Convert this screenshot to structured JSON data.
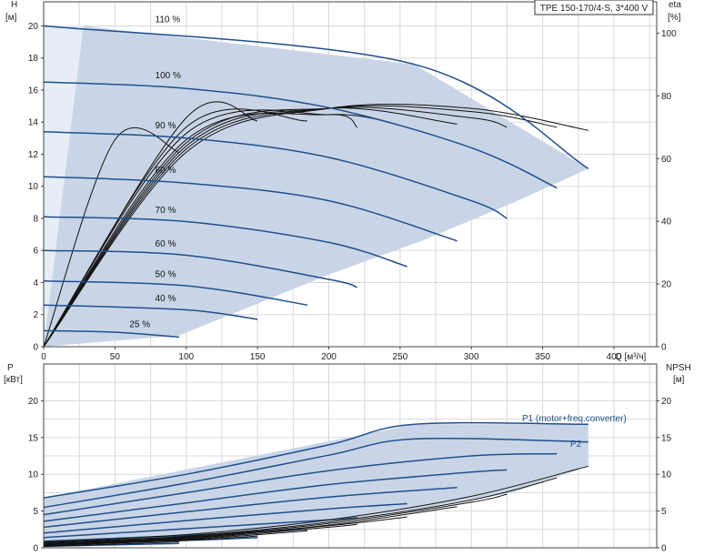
{
  "product_label": "TPE 150-170/4-S, 3*400 V",
  "chart_data": [
    {
      "type": "line",
      "panel": "head-efficiency",
      "xaxis": {
        "unit_label": "Q [м³/ч]",
        "range": [
          0,
          430
        ],
        "ticks": [
          "0",
          "50",
          "100",
          "150",
          "200",
          "250",
          "300",
          "350",
          "400"
        ]
      },
      "yaxis_left": {
        "name": "H",
        "unit": "[м]",
        "range": [
          0,
          21.5
        ],
        "ticks": [
          "0",
          "2",
          "4",
          "6",
          "8",
          "10",
          "12",
          "14",
          "16",
          "18",
          "20"
        ]
      },
      "yaxis_right": {
        "name": "eta",
        "unit": "[%]",
        "range": [
          0,
          110
        ],
        "ticks": [
          "0",
          "20",
          "40",
          "60",
          "80",
          "100"
        ]
      },
      "grid": true,
      "envelope": {
        "x": [
          0,
          28,
          260,
          382,
          330,
          265,
          200,
          95,
          0
        ],
        "y": [
          20,
          20,
          17.6,
          11.1,
          9.0,
          6.6,
          4.5,
          0.7,
          0
        ]
      },
      "head_curves": [
        {
          "label": "110 %",
          "x": [
            0,
            260,
            382
          ],
          "y": [
            20,
            17.6,
            11.1
          ]
        },
        {
          "label": "100 %",
          "x": [
            0,
            100,
            200,
            300,
            360
          ],
          "y": [
            16.5,
            16.1,
            14.9,
            12.4,
            9.9
          ]
        },
        {
          "label": "90 %",
          "x": [
            0,
            100,
            200,
            300,
            325
          ],
          "y": [
            13.4,
            13.0,
            11.8,
            9.1,
            8.0
          ]
        },
        {
          "label": "80 %",
          "x": [
            0,
            100,
            200,
            290
          ],
          "y": [
            10.6,
            10.2,
            9.1,
            6.6
          ]
        },
        {
          "label": "70 %",
          "x": [
            0,
            100,
            200,
            255
          ],
          "y": [
            8.1,
            7.8,
            6.5,
            5.0
          ]
        },
        {
          "label": "60 %",
          "x": [
            0,
            100,
            200,
            220
          ],
          "y": [
            6.0,
            5.7,
            4.2,
            3.7
          ]
        },
        {
          "label": "50 %",
          "x": [
            0,
            100,
            185
          ],
          "y": [
            4.1,
            3.8,
            2.6
          ]
        },
        {
          "label": "40 %",
          "x": [
            0,
            100,
            150
          ],
          "y": [
            2.6,
            2.3,
            1.7
          ]
        },
        {
          "label": "25 %",
          "x": [
            0,
            50,
            95
          ],
          "y": [
            1.0,
            0.9,
            0.6
          ]
        }
      ],
      "efficiency_curves": [
        {
          "name": "eta 110 %",
          "x": [
            0,
            100,
            200,
            300,
            382
          ],
          "y": [
            0,
            62,
            76,
            76,
            69
          ]
        },
        {
          "name": "eta 100 %",
          "x": [
            0,
            100,
            200,
            300,
            360
          ],
          "y": [
            0,
            63,
            76,
            75,
            70
          ]
        },
        {
          "name": "eta 90 %",
          "x": [
            0,
            100,
            200,
            300,
            325
          ],
          "y": [
            0,
            64,
            76,
            73,
            70
          ]
        },
        {
          "name": "eta 80 %",
          "x": [
            0,
            100,
            200,
            290
          ],
          "y": [
            0,
            65,
            76,
            71
          ]
        },
        {
          "name": "eta 70 %",
          "x": [
            0,
            100,
            200,
            255
          ],
          "y": [
            0,
            66,
            74,
            70
          ]
        },
        {
          "name": "eta 60 %",
          "x": [
            0,
            100,
            200,
            220
          ],
          "y": [
            0,
            68,
            74,
            70
          ]
        },
        {
          "name": "eta 50 %",
          "x": [
            0,
            100,
            185
          ],
          "y": [
            0,
            70,
            72
          ]
        },
        {
          "name": "eta 40 %",
          "x": [
            0,
            100,
            150
          ],
          "y": [
            0,
            73,
            72
          ]
        },
        {
          "name": "eta 25 %",
          "x": [
            0,
            50,
            95
          ],
          "y": [
            0,
            66,
            62
          ]
        }
      ]
    },
    {
      "type": "line",
      "panel": "power-npsh",
      "xaxis": {
        "range": [
          0,
          430
        ]
      },
      "yaxis_left": {
        "name": "P",
        "unit": "[кВт]",
        "range": [
          0,
          25
        ],
        "ticks": [
          "0",
          "5",
          "10",
          "15",
          "20"
        ]
      },
      "yaxis_right": {
        "name": "NPSH",
        "unit": "[м]",
        "range": [
          0,
          25
        ],
        "ticks": [
          "0",
          "5",
          "10",
          "15",
          "20"
        ]
      },
      "grid": true,
      "envelope": {
        "x": [
          0,
          260,
          382,
          382,
          330,
          260,
          200,
          95,
          0
        ],
        "y": [
          6.8,
          16.8,
          16.8,
          11.1,
          7.6,
          5.2,
          3.5,
          1.2,
          0
        ]
      },
      "series": [
        {
          "name": "P1 (motor+freq.converter)",
          "x": [
            0,
            100,
            200,
            260,
            382
          ],
          "y": [
            6.8,
            10.0,
            14.0,
            16.8,
            16.8
          ]
        },
        {
          "name": "P2",
          "x": [
            0,
            100,
            200,
            260,
            382
          ],
          "y": [
            5.5,
            8.8,
            12.6,
            14.8,
            14.4
          ]
        },
        {
          "name": "",
          "x": [
            0,
            100,
            200,
            300,
            360
          ],
          "y": [
            4.5,
            7.5,
            10.5,
            12.5,
            12.8
          ]
        },
        {
          "name": "",
          "x": [
            0,
            100,
            200,
            300,
            325
          ],
          "y": [
            3.6,
            6.1,
            8.6,
            10.3,
            10.6
          ]
        },
        {
          "name": "",
          "x": [
            0,
            100,
            200,
            290
          ],
          "y": [
            2.8,
            4.9,
            6.9,
            8.2
          ]
        },
        {
          "name": "",
          "x": [
            0,
            100,
            200,
            255
          ],
          "y": [
            2.0,
            3.7,
            5.3,
            6.0
          ]
        },
        {
          "name": "",
          "x": [
            0,
            100,
            200,
            220
          ],
          "y": [
            1.4,
            2.6,
            3.8,
            4.1
          ]
        },
        {
          "name": "",
          "x": [
            0,
            100,
            185
          ],
          "y": [
            0.9,
            1.7,
            2.5
          ]
        },
        {
          "name": "",
          "x": [
            0,
            100,
            150
          ],
          "y": [
            0.5,
            1.0,
            1.4
          ]
        },
        {
          "name": "",
          "x": [
            0,
            50,
            95
          ],
          "y": [
            0.2,
            0.4,
            0.6
          ]
        }
      ],
      "npsh_curves": [
        {
          "x": [
            0,
            100,
            200,
            300,
            382
          ],
          "y": [
            0.8,
            1.8,
            3.8,
            7.0,
            11.1
          ]
        },
        {
          "x": [
            0,
            100,
            200,
            300,
            360
          ],
          "y": [
            0.7,
            1.6,
            3.5,
            6.5,
            9.5
          ]
        },
        {
          "x": [
            0,
            100,
            200,
            300,
            325
          ],
          "y": [
            0.6,
            1.5,
            3.3,
            6.2,
            7.3
          ]
        },
        {
          "x": [
            0,
            100,
            200,
            290
          ],
          "y": [
            0.5,
            1.4,
            3.1,
            5.6
          ]
        },
        {
          "x": [
            0,
            100,
            200,
            255
          ],
          "y": [
            0.4,
            1.3,
            3.0,
            4.2
          ]
        },
        {
          "x": [
            0,
            100,
            200,
            220
          ],
          "y": [
            0.4,
            1.2,
            2.8,
            3.2
          ]
        },
        {
          "x": [
            0,
            100,
            185
          ],
          "y": [
            0.3,
            1.1,
            2.3
          ]
        },
        {
          "x": [
            0,
            100,
            150
          ],
          "y": [
            0.3,
            1.0,
            1.6
          ]
        },
        {
          "x": [
            0,
            50,
            95
          ],
          "y": [
            0.2,
            0.5,
            0.8
          ]
        }
      ]
    }
  ],
  "colors": {
    "curve": "#1f4e8c",
    "envelope": "#c9d5e6",
    "envelope_light": "#e6edf7",
    "grid": "#d8d8d8",
    "black": "#111111"
  }
}
